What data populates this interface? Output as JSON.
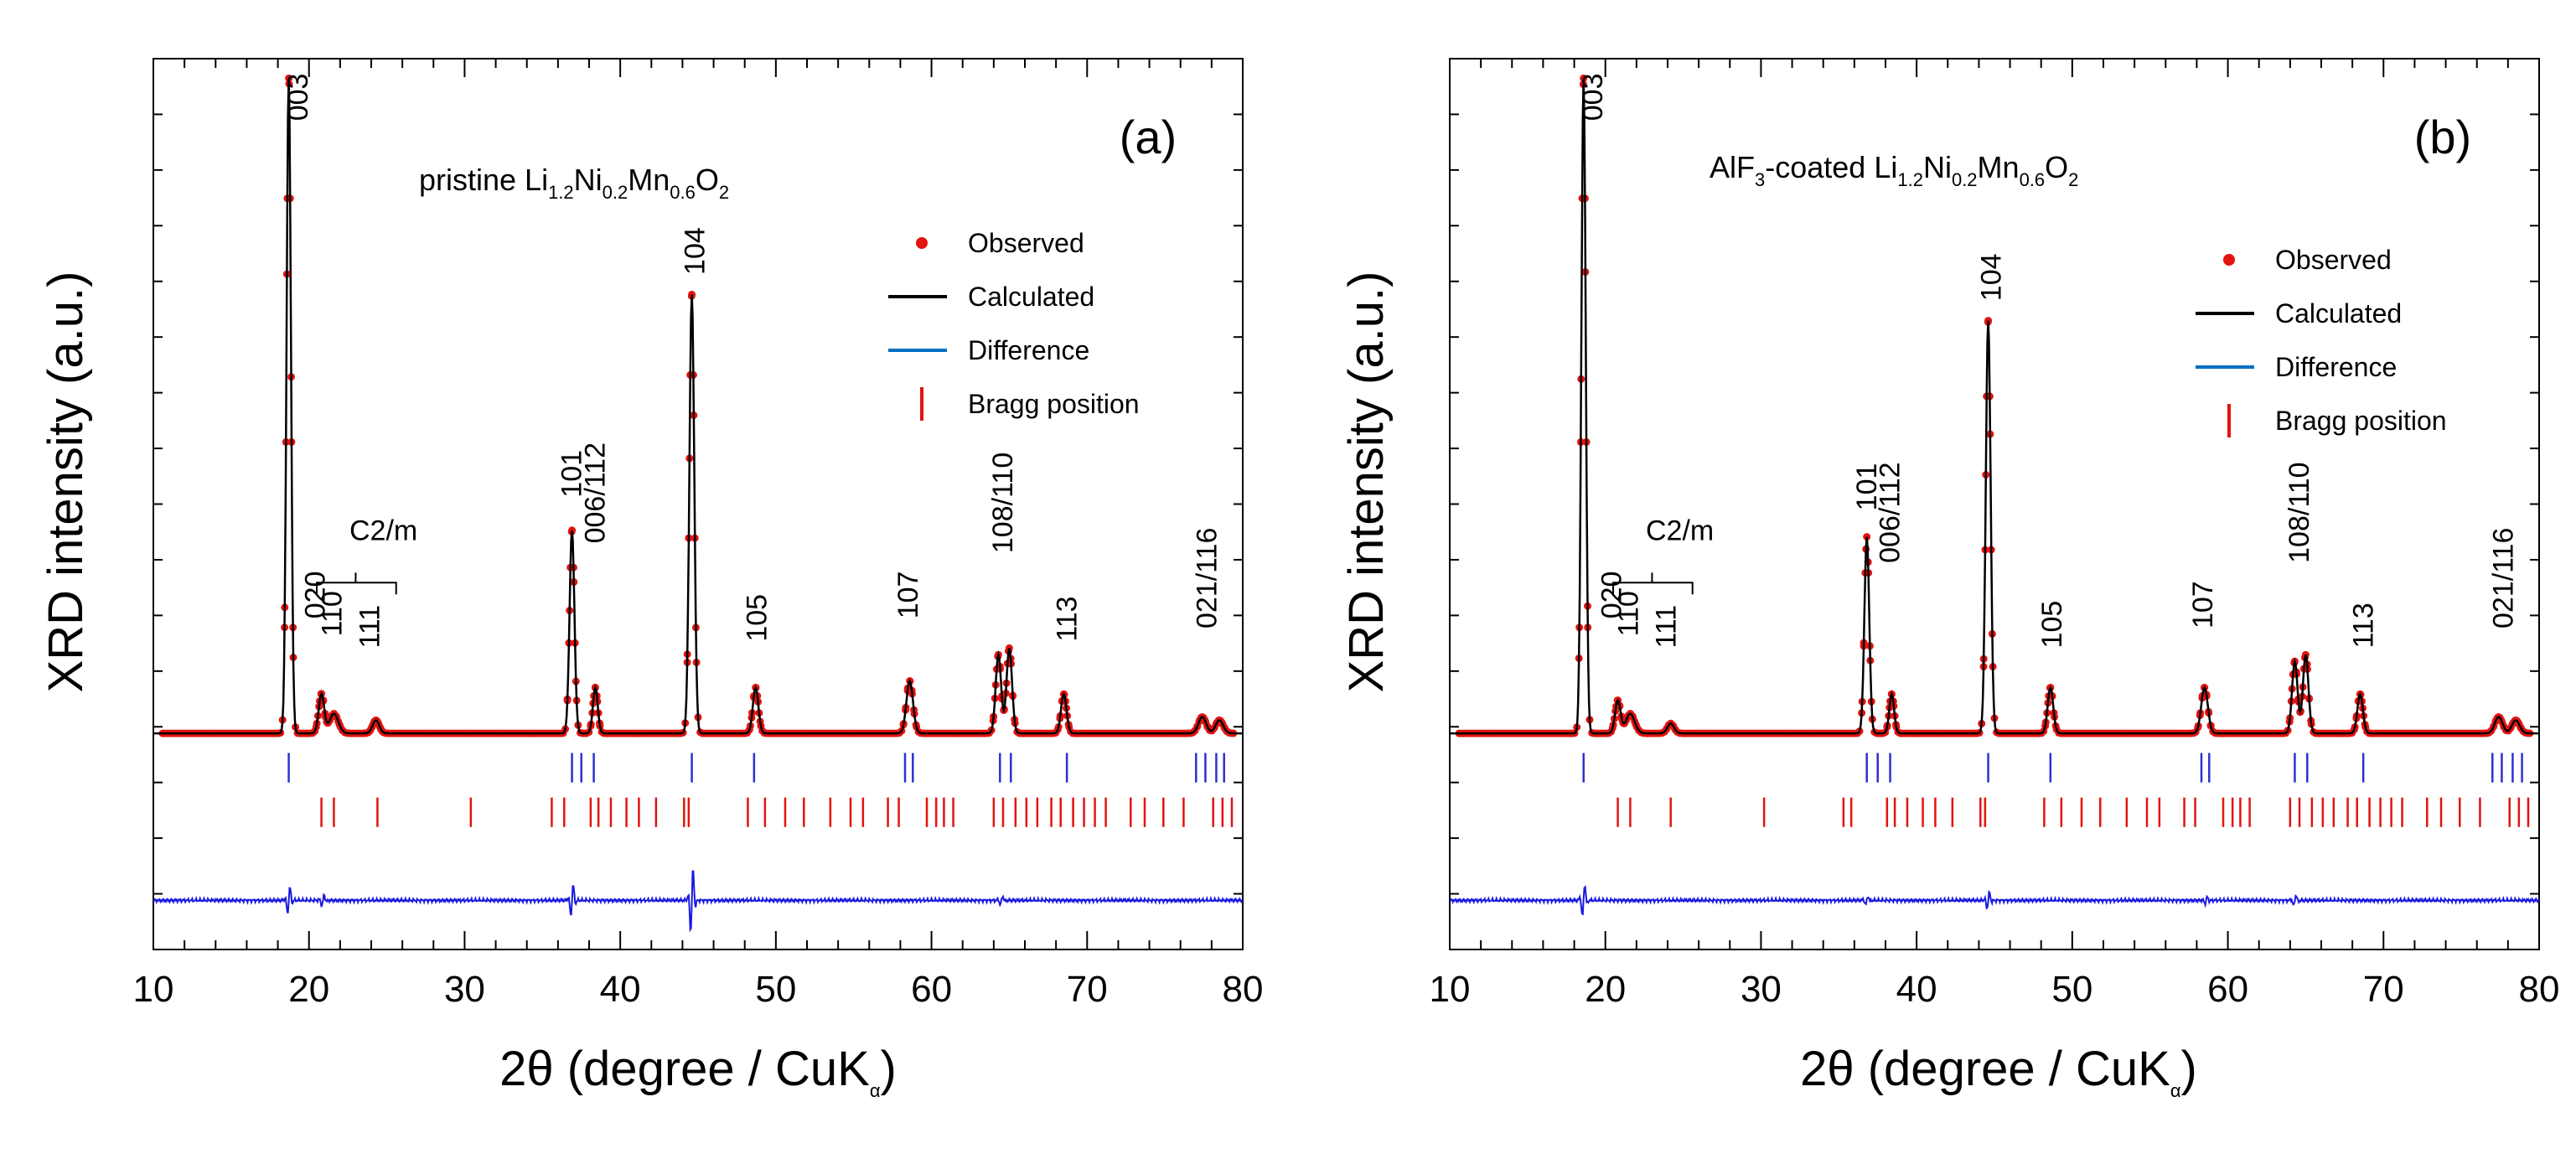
{
  "colors": {
    "observed": "#e3130f",
    "calculated": "#000000",
    "difference": "#1a1adf",
    "bragg": "#e3130f",
    "bragg_main": "#2f2fd0",
    "legend_difference": "#0070c0"
  },
  "chart_data": [
    {
      "type": "line",
      "panel_letter": "(a)",
      "sample": {
        "pre": "pristine Li",
        "s1": "1.2",
        "m1": "Ni",
        "s2": "0.2",
        "m2": "Mn",
        "s3": "0.6",
        "m3": "O",
        "s4": "2"
      },
      "ylabel": "XRD intensity (a.u.)",
      "xlabel": {
        "pre": "2θ (degree / CuK",
        "sub": "α",
        "post": ")"
      },
      "xlim": [
        10,
        80
      ],
      "ylim": [
        -0.33,
        1.03
      ],
      "xticks": [
        "10",
        "20",
        "30",
        "40",
        "50",
        "60",
        "70",
        "80"
      ],
      "legend": [
        {
          "label": "Observed",
          "marker": "dot"
        },
        {
          "label": "Calculated",
          "marker": "line"
        },
        {
          "label": "Difference",
          "marker": "line-blue"
        },
        {
          "label": "Bragg position",
          "marker": "bar"
        }
      ],
      "background": 0.0,
      "peaks": [
        {
          "x": 18.7,
          "h": 1.0,
          "w": 0.2
        },
        {
          "x": 20.8,
          "h": 0.06,
          "w": 0.25
        },
        {
          "x": 21.6,
          "h": 0.03,
          "w": 0.4
        },
        {
          "x": 24.3,
          "h": 0.02,
          "w": 0.3
        },
        {
          "x": 36.9,
          "h": 0.31,
          "w": 0.22
        },
        {
          "x": 38.4,
          "h": 0.07,
          "w": 0.22
        },
        {
          "x": 44.6,
          "h": 0.67,
          "w": 0.22
        },
        {
          "x": 48.7,
          "h": 0.07,
          "w": 0.25
        },
        {
          "x": 58.6,
          "h": 0.08,
          "w": 0.3
        },
        {
          "x": 64.3,
          "h": 0.12,
          "w": 0.25
        },
        {
          "x": 65.0,
          "h": 0.13,
          "w": 0.25
        },
        {
          "x": 68.5,
          "h": 0.06,
          "w": 0.25
        },
        {
          "x": 77.4,
          "h": 0.025,
          "w": 0.35
        },
        {
          "x": 78.5,
          "h": 0.02,
          "w": 0.35
        }
      ],
      "difference_spikes": [
        {
          "x": 18.7,
          "a": 0.025
        },
        {
          "x": 20.9,
          "a": 0.01
        },
        {
          "x": 36.9,
          "a": 0.03
        },
        {
          "x": 44.6,
          "a": 0.06
        },
        {
          "x": 64.5,
          "a": 0.008
        }
      ],
      "main_bragg": [
        18.7,
        36.9,
        37.5,
        38.3,
        44.6,
        48.6,
        58.3,
        58.8,
        64.4,
        65.1,
        68.7,
        77.0,
        77.6,
        78.3,
        78.8
      ],
      "c2m_bragg": [
        20.8,
        21.6,
        24.4,
        30.4,
        35.6,
        36.4,
        38.1,
        38.6,
        39.4,
        40.4,
        41.2,
        42.3,
        44.1,
        44.4,
        48.2,
        49.3,
        50.6,
        51.8,
        53.5,
        54.8,
        55.6,
        57.2,
        57.9,
        59.7,
        60.3,
        60.8,
        61.4,
        64.0,
        64.6,
        65.4,
        66.1,
        66.8,
        67.7,
        68.3,
        69.1,
        69.8,
        70.5,
        71.2,
        72.8,
        73.7,
        74.9,
        76.2,
        78.1,
        78.7,
        79.3
      ],
      "annotations": [
        {
          "text": "003",
          "x": 19.9,
          "y": 0.935,
          "rot": -90
        },
        {
          "text": "C2/m",
          "x": 22.6,
          "y": 0.295,
          "rot": 0
        },
        {
          "text": "020",
          "x": 21.0,
          "y": 0.175,
          "rot": -90
        },
        {
          "text": "110",
          "x": 22.1,
          "y": 0.148,
          "rot": -90
        },
        {
          "text": "111",
          "x": 24.5,
          "y": 0.13,
          "rot": -90
        },
        {
          "text": "101",
          "x": 37.5,
          "y": 0.36,
          "rot": -90
        },
        {
          "text": "006/112",
          "x": 39.0,
          "y": 0.29,
          "rot": -90
        },
        {
          "text": "104",
          "x": 45.4,
          "y": 0.7,
          "rot": -90
        },
        {
          "text": "105",
          "x": 49.4,
          "y": 0.14,
          "rot": -90
        },
        {
          "text": "107",
          "x": 59.1,
          "y": 0.175,
          "rot": -90
        },
        {
          "text": "108/110",
          "x": 65.2,
          "y": 0.275,
          "rot": -90
        },
        {
          "text": "113",
          "x": 69.3,
          "y": 0.14,
          "rot": -90
        },
        {
          "text": "021/116",
          "x": 78.3,
          "y": 0.16,
          "rot": -90
        }
      ]
    },
    {
      "type": "line",
      "panel_letter": "(b)",
      "sample": {
        "pre": "AlF",
        "s0": "3",
        "mid": "-coated Li",
        "s1": "1.2",
        "m1": "Ni",
        "s2": "0.2",
        "m2": "Mn",
        "s3": "0.6",
        "m3": "O",
        "s4": "2"
      },
      "ylabel": "XRD intensity (a.u.)",
      "xlabel": {
        "pre": "2θ (degree / CuK",
        "sub": "α",
        "post": ")"
      },
      "xlim": [
        10,
        80
      ],
      "ylim": [
        -0.33,
        1.03
      ],
      "xticks": [
        "10",
        "20",
        "30",
        "40",
        "50",
        "60",
        "70",
        "80"
      ],
      "legend": [
        {
          "label": "Observed",
          "marker": "dot"
        },
        {
          "label": "Calculated",
          "marker": "line"
        },
        {
          "label": "Difference",
          "marker": "line-blue"
        },
        {
          "label": "Bragg position",
          "marker": "bar"
        }
      ],
      "background": 0.0,
      "peaks": [
        {
          "x": 18.6,
          "h": 1.0,
          "w": 0.2
        },
        {
          "x": 20.8,
          "h": 0.05,
          "w": 0.25
        },
        {
          "x": 21.6,
          "h": 0.03,
          "w": 0.4
        },
        {
          "x": 24.2,
          "h": 0.015,
          "w": 0.3
        },
        {
          "x": 36.8,
          "h": 0.3,
          "w": 0.22
        },
        {
          "x": 38.4,
          "h": 0.06,
          "w": 0.22
        },
        {
          "x": 44.6,
          "h": 0.63,
          "w": 0.22
        },
        {
          "x": 48.6,
          "h": 0.07,
          "w": 0.25
        },
        {
          "x": 58.5,
          "h": 0.07,
          "w": 0.3
        },
        {
          "x": 64.3,
          "h": 0.11,
          "w": 0.25
        },
        {
          "x": 65.0,
          "h": 0.12,
          "w": 0.25
        },
        {
          "x": 68.5,
          "h": 0.06,
          "w": 0.25
        },
        {
          "x": 77.4,
          "h": 0.025,
          "w": 0.35
        },
        {
          "x": 78.5,
          "h": 0.02,
          "w": 0.35
        }
      ],
      "difference_spikes": [
        {
          "x": 18.6,
          "a": 0.03
        },
        {
          "x": 36.8,
          "a": 0.008
        },
        {
          "x": 44.6,
          "a": 0.015
        },
        {
          "x": 58.6,
          "a": 0.006
        },
        {
          "x": 64.3,
          "a": 0.01
        }
      ],
      "main_bragg": [
        18.6,
        36.8,
        37.5,
        38.3,
        44.6,
        48.6,
        58.3,
        58.8,
        64.3,
        65.1,
        68.7,
        77.0,
        77.6,
        78.3,
        78.9
      ],
      "c2m_bragg": [
        20.8,
        21.6,
        24.2,
        30.2,
        35.3,
        35.8,
        38.1,
        38.6,
        39.4,
        40.4,
        41.2,
        42.3,
        44.1,
        44.4,
        48.2,
        49.3,
        50.6,
        51.8,
        53.5,
        54.8,
        55.6,
        57.2,
        57.9,
        59.7,
        60.3,
        60.8,
        61.4,
        64.0,
        64.6,
        65.4,
        66.1,
        66.8,
        67.7,
        68.3,
        69.1,
        69.8,
        70.5,
        71.2,
        72.8,
        73.7,
        74.9,
        76.2,
        78.1,
        78.7,
        79.3
      ],
      "annotations": [
        {
          "text": "003",
          "x": 19.8,
          "y": 0.935,
          "rot": -90
        },
        {
          "text": "C2/m",
          "x": 22.6,
          "y": 0.295,
          "rot": 0
        },
        {
          "text": "020",
          "x": 21.0,
          "y": 0.175,
          "rot": -90
        },
        {
          "text": "110",
          "x": 22.1,
          "y": 0.148,
          "rot": -90
        },
        {
          "text": "111",
          "x": 24.5,
          "y": 0.13,
          "rot": -90
        },
        {
          "text": "101",
          "x": 37.4,
          "y": 0.34,
          "rot": -90
        },
        {
          "text": "006/112",
          "x": 38.9,
          "y": 0.26,
          "rot": -90
        },
        {
          "text": "104",
          "x": 45.4,
          "y": 0.66,
          "rot": -90
        },
        {
          "text": "105",
          "x": 49.3,
          "y": 0.13,
          "rot": -90
        },
        {
          "text": "107",
          "x": 59.0,
          "y": 0.16,
          "rot": -90
        },
        {
          "text": "108/110",
          "x": 65.2,
          "y": 0.26,
          "rot": -90
        },
        {
          "text": "113",
          "x": 69.3,
          "y": 0.13,
          "rot": -90
        },
        {
          "text": "021/116",
          "x": 78.3,
          "y": 0.16,
          "rot": -90
        }
      ]
    }
  ]
}
